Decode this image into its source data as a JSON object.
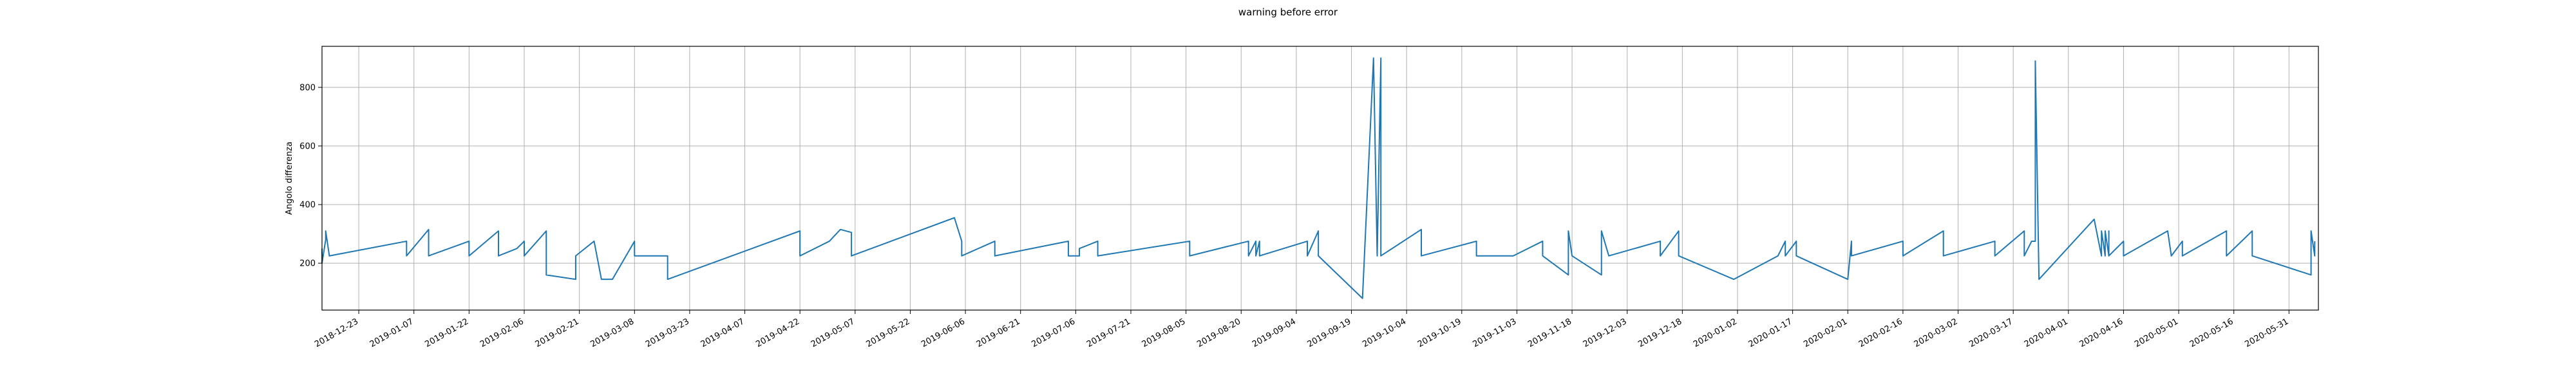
{
  "chart_data": {
    "type": "line",
    "title": "warning before error",
    "xlabel": "",
    "ylabel": "Angolo differenza",
    "grid": true,
    "xlim": [
      "2018-12-13",
      "2020-06-08"
    ],
    "ylim": [
      40,
      940
    ],
    "yticks": [
      200,
      400,
      600,
      800
    ],
    "xticks": [
      "2018-12-23",
      "2019-01-07",
      "2019-01-22",
      "2019-02-06",
      "2019-02-21",
      "2019-03-08",
      "2019-03-23",
      "2019-04-07",
      "2019-04-22",
      "2019-05-07",
      "2019-05-22",
      "2019-06-06",
      "2019-06-21",
      "2019-07-06",
      "2019-07-21",
      "2019-08-05",
      "2019-08-20",
      "2019-09-04",
      "2019-09-19",
      "2019-10-04",
      "2019-10-19",
      "2019-11-03",
      "2019-11-18",
      "2019-12-03",
      "2019-12-18",
      "2020-01-02",
      "2020-01-17",
      "2020-02-01",
      "2020-02-16",
      "2020-03-02",
      "2020-03-17",
      "2020-04-01",
      "2020-04-16",
      "2020-05-01",
      "2020-05-16",
      "2020-05-31"
    ],
    "series": [
      {
        "color": "#1f77b4",
        "points": [
          [
            "2018-12-13",
            250
          ],
          [
            "2018-12-13",
            200
          ],
          [
            "2018-12-14",
            280
          ],
          [
            "2018-12-14",
            310
          ],
          [
            "2018-12-15",
            225
          ],
          [
            "2019-01-05",
            275
          ],
          [
            "2019-01-05",
            225
          ],
          [
            "2019-01-11",
            315
          ],
          [
            "2019-01-11",
            225
          ],
          [
            "2019-01-22",
            275
          ],
          [
            "2019-01-22",
            225
          ],
          [
            "2019-01-30",
            310
          ],
          [
            "2019-01-30",
            225
          ],
          [
            "2019-02-04",
            250
          ],
          [
            "2019-02-06",
            275
          ],
          [
            "2019-02-06",
            225
          ],
          [
            "2019-02-12",
            310
          ],
          [
            "2019-02-12",
            160
          ],
          [
            "2019-02-20",
            145
          ],
          [
            "2019-02-20",
            225
          ],
          [
            "2019-02-25",
            275
          ],
          [
            "2019-02-27",
            145
          ],
          [
            "2019-03-02",
            145
          ],
          [
            "2019-03-08",
            275
          ],
          [
            "2019-03-08",
            225
          ],
          [
            "2019-03-17",
            225
          ],
          [
            "2019-03-17",
            145
          ],
          [
            "2019-04-22",
            310
          ],
          [
            "2019-04-22",
            225
          ],
          [
            "2019-04-30",
            275
          ],
          [
            "2019-05-03",
            315
          ],
          [
            "2019-05-06",
            305
          ],
          [
            "2019-05-06",
            225
          ],
          [
            "2019-06-03",
            355
          ],
          [
            "2019-06-05",
            275
          ],
          [
            "2019-06-05",
            225
          ],
          [
            "2019-06-14",
            275
          ],
          [
            "2019-06-14",
            225
          ],
          [
            "2019-07-04",
            275
          ],
          [
            "2019-07-04",
            225
          ],
          [
            "2019-07-07",
            225
          ],
          [
            "2019-07-07",
            250
          ],
          [
            "2019-07-12",
            275
          ],
          [
            "2019-07-12",
            225
          ],
          [
            "2019-08-06",
            275
          ],
          [
            "2019-08-06",
            225
          ],
          [
            "2019-08-22",
            275
          ],
          [
            "2019-08-22",
            225
          ],
          [
            "2019-08-24",
            275
          ],
          [
            "2019-08-24",
            225
          ],
          [
            "2019-08-25",
            275
          ],
          [
            "2019-08-25",
            225
          ],
          [
            "2019-09-07",
            275
          ],
          [
            "2019-09-07",
            225
          ],
          [
            "2019-09-10",
            310
          ],
          [
            "2019-09-10",
            225
          ],
          [
            "2019-09-22",
            80
          ],
          [
            "2019-09-25",
            900
          ],
          [
            "2019-09-26",
            225
          ],
          [
            "2019-09-27",
            900
          ],
          [
            "2019-09-27",
            225
          ],
          [
            "2019-10-08",
            315
          ],
          [
            "2019-10-08",
            225
          ],
          [
            "2019-10-23",
            275
          ],
          [
            "2019-10-23",
            225
          ],
          [
            "2019-11-02",
            225
          ],
          [
            "2019-11-10",
            275
          ],
          [
            "2019-11-10",
            225
          ],
          [
            "2019-11-17",
            160
          ],
          [
            "2019-11-17",
            310
          ],
          [
            "2019-11-18",
            225
          ],
          [
            "2019-11-26",
            160
          ],
          [
            "2019-11-26",
            310
          ],
          [
            "2019-11-28",
            225
          ],
          [
            "2019-12-12",
            275
          ],
          [
            "2019-12-12",
            225
          ],
          [
            "2019-12-17",
            310
          ],
          [
            "2019-12-17",
            225
          ],
          [
            "2020-01-01",
            145
          ],
          [
            "2020-01-13",
            225
          ],
          [
            "2020-01-15",
            275
          ],
          [
            "2020-01-15",
            225
          ],
          [
            "2020-01-18",
            275
          ],
          [
            "2020-01-18",
            225
          ],
          [
            "2020-02-01",
            145
          ],
          [
            "2020-02-02",
            275
          ],
          [
            "2020-02-02",
            225
          ],
          [
            "2020-02-16",
            275
          ],
          [
            "2020-02-16",
            225
          ],
          [
            "2020-02-27",
            310
          ],
          [
            "2020-02-27",
            225
          ],
          [
            "2020-03-12",
            275
          ],
          [
            "2020-03-12",
            225
          ],
          [
            "2020-03-20",
            310
          ],
          [
            "2020-03-20",
            225
          ],
          [
            "2020-03-22",
            275
          ],
          [
            "2020-03-23",
            275
          ],
          [
            "2020-03-23",
            890
          ],
          [
            "2020-03-24",
            145
          ],
          [
            "2020-04-08",
            350
          ],
          [
            "2020-04-10",
            225
          ],
          [
            "2020-04-10",
            310
          ],
          [
            "2020-04-11",
            225
          ],
          [
            "2020-04-11",
            310
          ],
          [
            "2020-04-12",
            225
          ],
          [
            "2020-04-12",
            310
          ],
          [
            "2020-04-12",
            225
          ],
          [
            "2020-04-16",
            275
          ],
          [
            "2020-04-16",
            225
          ],
          [
            "2020-04-28",
            310
          ],
          [
            "2020-04-29",
            225
          ],
          [
            "2020-05-02",
            275
          ],
          [
            "2020-05-02",
            225
          ],
          [
            "2020-05-14",
            310
          ],
          [
            "2020-05-14",
            225
          ],
          [
            "2020-05-21",
            310
          ],
          [
            "2020-05-21",
            225
          ],
          [
            "2020-06-06",
            160
          ],
          [
            "2020-06-06",
            310
          ],
          [
            "2020-06-07",
            225
          ],
          [
            "2020-06-07",
            275
          ]
        ]
      }
    ]
  }
}
